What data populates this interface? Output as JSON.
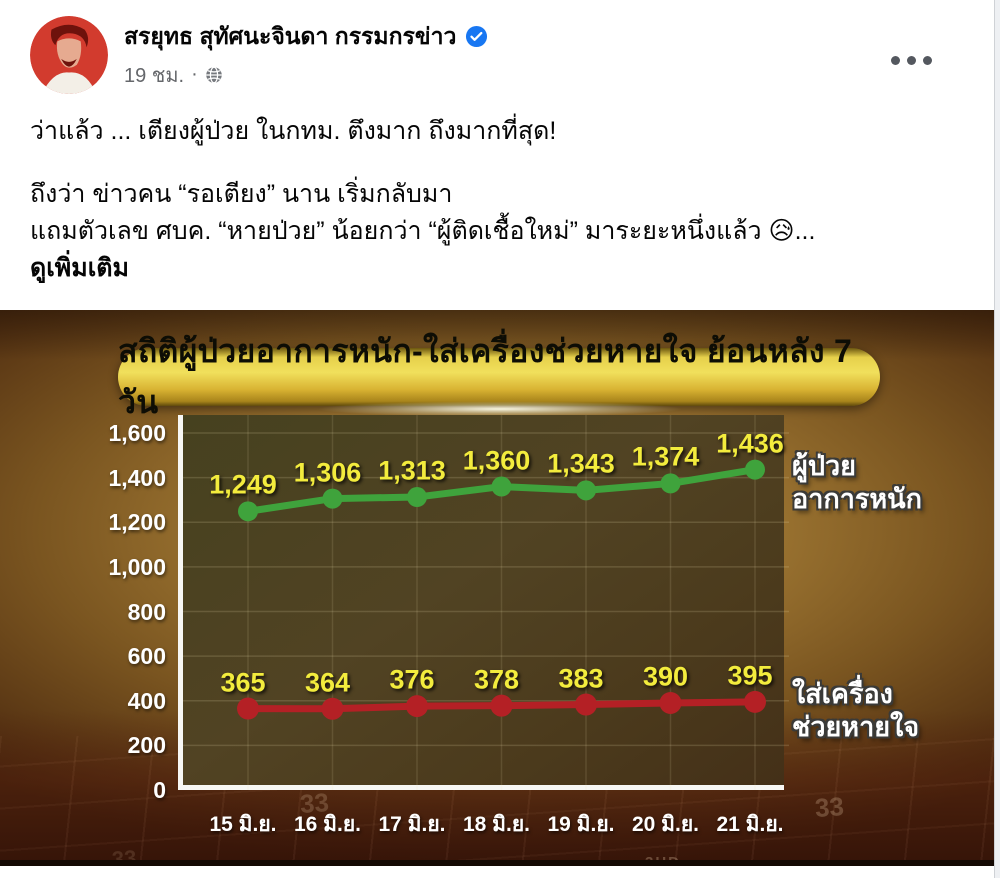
{
  "theme": {
    "verified_blue": "#1877f2",
    "meta_gray": "#65676b",
    "text_black": "#050505",
    "page_bg": "#ffffff"
  },
  "post": {
    "author": "สรยุทธ สุทัศนะจินดา กรรมกรข่าว",
    "timestamp": "19 ชม.",
    "separator": "·",
    "icons": {
      "verified": "verified-badge-icon",
      "privacy": "globe-icon",
      "menu": "ellipsis-icon"
    },
    "body_line1": "ว่าแล้ว ... เตียงผู้ป่วย ในกทม. ตึงมาก ถึงมากที่สุด!",
    "body_line2": "ถึงว่า ข่าวคน “รอเตียง” นาน เริ่มกลับมา",
    "body_line3": "แถมตัวเลข ศบค. “หายป่วย” น้อยกว่า “ผู้ติดเชื้อใหม่” มาระยะหนึ่งแล้ว 😥...",
    "see_more": "ดูเพิ่มเติม"
  },
  "chart_data": {
    "type": "line",
    "title": "สถิติผู้ป่วยอาการหนัก-ใส่เครื่องช่วยหายใจ ย้อนหลัง 7 วัน",
    "categories": [
      "15 มิ.ย.",
      "16 มิ.ย.",
      "17 มิ.ย.",
      "18 มิ.ย.",
      "19 มิ.ย.",
      "20 มิ.ย.",
      "21 มิ.ย."
    ],
    "series": [
      {
        "name": "ผู้ป่วยอาการหนัก",
        "legend_line1": "ผู้ป่วย",
        "legend_line2": "อาการหนัก",
        "color": "#3fa33c",
        "values": [
          1249,
          1306,
          1313,
          1360,
          1343,
          1374,
          1436
        ]
      },
      {
        "name": "ใส่เครื่องช่วยหายใจ",
        "legend_line1": "ใส่เครื่อง",
        "legend_line2": "ช่วยหายใจ",
        "color": "#b42025",
        "values": [
          365,
          364,
          376,
          378,
          383,
          390,
          395
        ]
      }
    ],
    "ylim": [
      0,
      1600
    ],
    "ytick_step": 200,
    "yticks": [
      "1,600",
      "1,400",
      "1,200",
      "1,000",
      "800",
      "600",
      "400",
      "200",
      "0"
    ],
    "grid": true,
    "legend_position": "right",
    "data_label_color": "#f3ec3d",
    "watermarks": {
      "w1": "33",
      "w2": "33",
      "w3": "3HD",
      "w4": "33"
    }
  }
}
